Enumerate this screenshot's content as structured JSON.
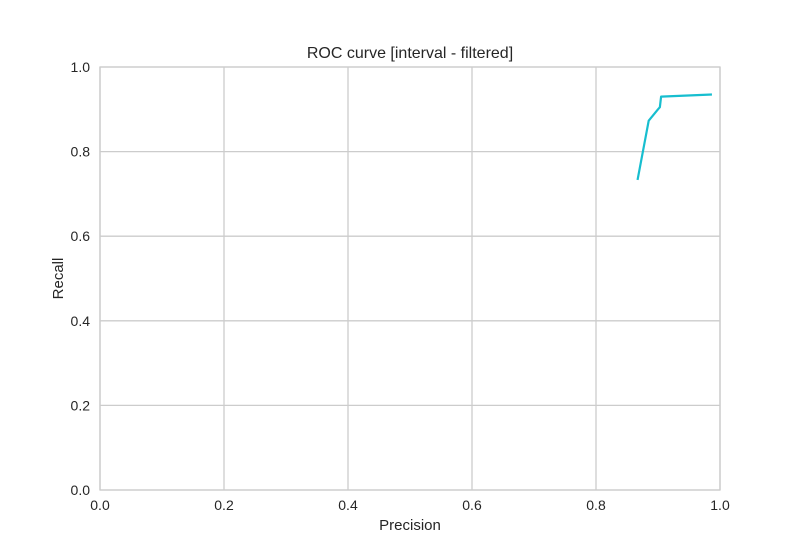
{
  "chart_data": {
    "type": "line",
    "title": "ROC curve [interval - filtered]",
    "xlabel": "Precision",
    "ylabel": "Recall",
    "xlim": [
      0.0,
      1.0
    ],
    "ylim": [
      0.0,
      1.0
    ],
    "xticks": [
      "0.0",
      "0.2",
      "0.4",
      "0.6",
      "0.8",
      "1.0"
    ],
    "yticks": [
      "0.0",
      "0.2",
      "0.4",
      "0.6",
      "0.8",
      "1.0"
    ],
    "grid": true,
    "series": [
      {
        "color": "#17becf",
        "points": [
          {
            "x": 0.867,
            "y": 0.733
          },
          {
            "x": 0.885,
            "y": 0.873
          },
          {
            "x": 0.9,
            "y": 0.9
          },
          {
            "x": 0.903,
            "y": 0.905
          },
          {
            "x": 0.905,
            "y": 0.93
          },
          {
            "x": 0.987,
            "y": 0.935
          }
        ]
      }
    ]
  }
}
